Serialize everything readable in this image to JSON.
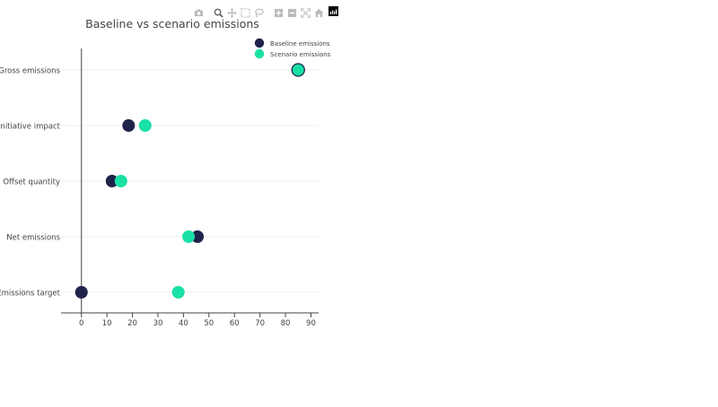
{
  "chart_data": {
    "type": "scatter",
    "title": "Baseline vs scenario emissions",
    "xlabel": "",
    "ylabel": "",
    "xlim": [
      -8,
      93
    ],
    "xticks": [
      0,
      10,
      20,
      30,
      40,
      50,
      60,
      70,
      80,
      90
    ],
    "categories": [
      "Gross emissions",
      "Initiative impact",
      "Offset quantity",
      "Net emissions",
      "Emissions target"
    ],
    "legend_position": "top-right",
    "grid": "horizontal",
    "series": [
      {
        "name": "Baseline emissions",
        "color": "#1f2249",
        "values": [
          85,
          18.5,
          12,
          45.5,
          0
        ]
      },
      {
        "name": "Scenario emissions",
        "color": "#19e0a5",
        "values": [
          85,
          25,
          15.5,
          42,
          38
        ]
      }
    ]
  },
  "modebar": {
    "icons": [
      "camera-icon",
      "zoom-icon",
      "pan-icon",
      "box-select-icon",
      "lasso-icon",
      "zoom-in-icon",
      "zoom-out-icon",
      "autoscale-icon",
      "home-icon",
      "plotly-logo-icon"
    ]
  }
}
